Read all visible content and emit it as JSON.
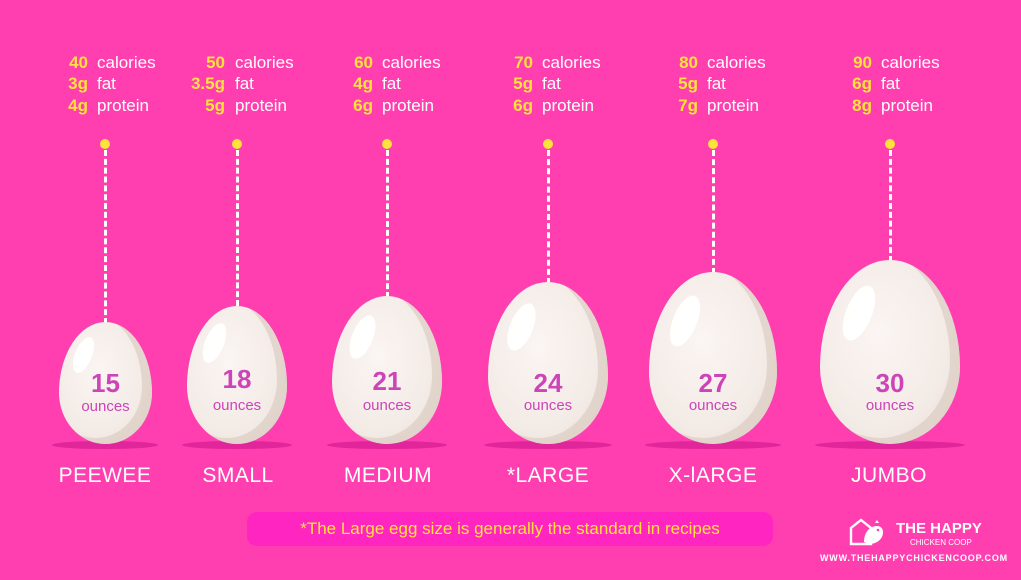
{
  "eggs": [
    {
      "size": "PEEWEE",
      "ounces": "15",
      "ounces_label": "ounces",
      "calories_value": "40",
      "calories_label": "calories",
      "fat_value": "3g",
      "fat_label": "fat",
      "protein_value": "4g",
      "protein_label": "protein"
    },
    {
      "size": "SMALL",
      "ounces": "18",
      "ounces_label": "ounces",
      "calories_value": "50",
      "calories_label": "calories",
      "fat_value": "3.5g",
      "fat_label": "fat",
      "protein_value": "5g",
      "protein_label": "protein"
    },
    {
      "size": "MEDIUM",
      "ounces": "21",
      "ounces_label": "ounces",
      "calories_value": "60",
      "calories_label": "calories",
      "fat_value": "4g",
      "fat_label": "fat",
      "protein_value": "6g",
      "protein_label": "protein"
    },
    {
      "size": "*LARGE",
      "ounces": "24",
      "ounces_label": "ounces",
      "calories_value": "70",
      "calories_label": "calories",
      "fat_value": "5g",
      "fat_label": "fat",
      "protein_value": "6g",
      "protein_label": "protein"
    },
    {
      "size": "X-lARGE",
      "ounces": "27",
      "ounces_label": "ounces",
      "calories_value": "80",
      "calories_label": "calories",
      "fat_value": "5g",
      "fat_label": "fat",
      "protein_value": "7g",
      "protein_label": "protein"
    },
    {
      "size": "JUMBO",
      "ounces": "30",
      "ounces_label": "ounces",
      "calories_value": "90",
      "calories_label": "calories",
      "fat_value": "6g",
      "fat_label": "fat",
      "protein_value": "8g",
      "protein_label": "protein"
    }
  ],
  "footnote": "*The Large egg size is generally the standard in recipes",
  "brand": {
    "name": "THE HAPPY",
    "sub": "CHICKEN COOP",
    "url": "WWW.THEHAPPYCHICKENCOOP.COM",
    "logo_icon": "chicken-coop-logo-icon"
  },
  "colors": {
    "background": "#ff3eb0",
    "values": "#ffe23a",
    "labels": "#ffffff",
    "ounces_text": "#cc44b8",
    "egg": "#f3ebe6"
  }
}
